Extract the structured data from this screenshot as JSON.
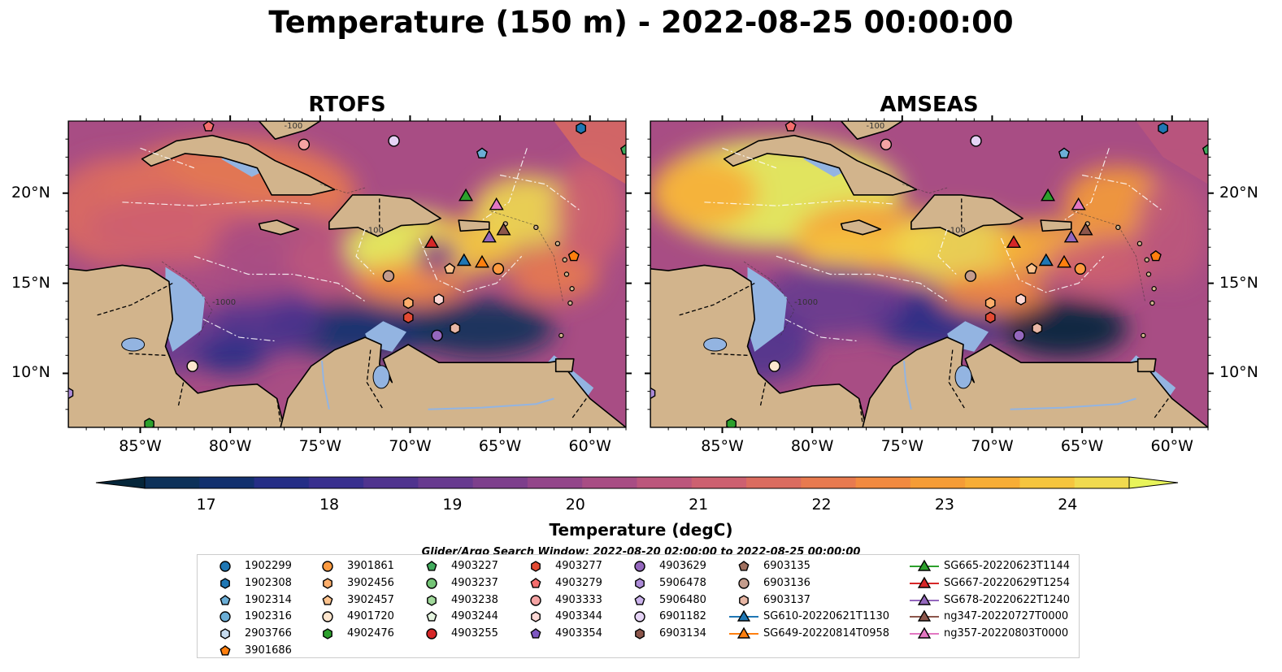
{
  "title": "Temperature (150 m) - 2022-08-25 00:00:00",
  "panels": [
    {
      "title": "RTOFS"
    },
    {
      "title": "AMSEAS"
    }
  ],
  "lon_ticks": [
    "85°W",
    "80°W",
    "75°W",
    "70°W",
    "65°W",
    "60°W"
  ],
  "lat_ticks": [
    "20°N",
    "15°N",
    "10°N"
  ],
  "map_extent": {
    "lon": [
      -89,
      -58
    ],
    "lat": [
      7,
      24
    ]
  },
  "colorbar": {
    "label": "Temperature (degC)",
    "range": [
      16.5,
      24.5
    ],
    "step": 0.5,
    "ticks": [
      "17",
      "18",
      "19",
      "20",
      "21",
      "22",
      "23",
      "24"
    ],
    "extend": "both",
    "colors": [
      "#05263a",
      "#0d3159",
      "#12306e",
      "#252e86",
      "#382f8e",
      "#4f338e",
      "#673a8f",
      "#7d3f8c",
      "#93468a",
      "#a84d84",
      "#bc567c",
      "#cd6070",
      "#db6c5f",
      "#e87a4f",
      "#f28a40",
      "#f59c36",
      "#f7ad36",
      "#f5c53e",
      "#f0da4f",
      "#e8f45b"
    ]
  },
  "map_colors": {
    "land": "#d2b48c",
    "shelf": "#93b4e1",
    "ocean_deep": "#05263a"
  },
  "contour_labels": [
    "-1000",
    "-100"
  ],
  "search_window": "Glider/Argo Search Window: 2022-08-20 02:00:00 to 2022-08-25 00:00:00",
  "legend": {
    "columns": [
      [
        {
          "label": "1902299",
          "shape": "circle",
          "color": "#1f77b4"
        },
        {
          "label": "1902308",
          "shape": "hexagon",
          "color": "#1f77b4"
        },
        {
          "label": "1902314",
          "shape": "pentagon",
          "color": "#6baed6"
        },
        {
          "label": "1902316",
          "shape": "circle",
          "color": "#6baed6"
        },
        {
          "label": "2903766",
          "shape": "hexagon",
          "color": "#c6dbef"
        },
        {
          "label": "3901686",
          "shape": "pentagon",
          "color": "#ff7f0e"
        }
      ],
      [
        {
          "label": "3901861",
          "shape": "circle",
          "color": "#fd9a40"
        },
        {
          "label": "3902456",
          "shape": "hexagon",
          "color": "#fdae6b"
        },
        {
          "label": "3902457",
          "shape": "pentagon",
          "color": "#fdc38e"
        },
        {
          "label": "4901720",
          "shape": "circle",
          "color": "#fee6ce"
        },
        {
          "label": "4902476",
          "shape": "hexagon",
          "color": "#2ca02c"
        }
      ],
      [
        {
          "label": "4903227",
          "shape": "pentagon",
          "color": "#41ab5d"
        },
        {
          "label": "4903237",
          "shape": "circle",
          "color": "#74c476"
        },
        {
          "label": "4903238",
          "shape": "hexagon",
          "color": "#a1d99b"
        },
        {
          "label": "4903244",
          "shape": "pentagon",
          "color": "#e5f5e0"
        },
        {
          "label": "4903255",
          "shape": "circle",
          "color": "#d62728"
        }
      ],
      [
        {
          "label": "4903277",
          "shape": "hexagon",
          "color": "#e34a33"
        },
        {
          "label": "4903279",
          "shape": "pentagon",
          "color": "#f46d6d"
        },
        {
          "label": "4903333",
          "shape": "circle",
          "color": "#f4a3a3"
        },
        {
          "label": "4903344",
          "shape": "hexagon",
          "color": "#fdd8d5"
        },
        {
          "label": "4903354",
          "shape": "pentagon",
          "color": "#7e57c2"
        }
      ],
      [
        {
          "label": "4903629",
          "shape": "circle",
          "color": "#9467bd"
        },
        {
          "label": "5906478",
          "shape": "hexagon",
          "color": "#ad8bd8"
        },
        {
          "label": "5906480",
          "shape": "pentagon",
          "color": "#cbb3ec"
        },
        {
          "label": "6901182",
          "shape": "circle",
          "color": "#e5d3f5"
        },
        {
          "label": "6903134",
          "shape": "hexagon",
          "color": "#8c564b"
        }
      ],
      [
        {
          "label": "6903135",
          "shape": "pentagon",
          "color": "#a0705f"
        },
        {
          "label": "6903136",
          "shape": "circle",
          "color": "#c49c8c"
        },
        {
          "label": "6903137",
          "shape": "hexagon",
          "color": "#e8b7a5"
        },
        {
          "label": "SG610-20220621T1130",
          "shape": "triangle",
          "color": "#1f77b4"
        },
        {
          "label": "SG649-20220814T0958",
          "shape": "triangle",
          "color": "#ff7f0e"
        }
      ],
      [
        {
          "label": "SG665-20220623T1144",
          "shape": "triangle",
          "color": "#2ca02c"
        },
        {
          "label": "SG667-20220629T1254",
          "shape": "triangle",
          "color": "#d62728"
        },
        {
          "label": "SG678-20220622T1240",
          "shape": "triangle",
          "color": "#9467bd"
        },
        {
          "label": "ng347-20220727T0000",
          "shape": "triangle",
          "color": "#8c564b"
        },
        {
          "label": "ng357-20220803T0000",
          "shape": "triangle",
          "color": "#e377c2"
        }
      ]
    ]
  },
  "markers": [
    {
      "label": "3901686",
      "lon": -60.9,
      "lat": 16.5,
      "shape": "pentagon",
      "color": "#ff7f0e"
    },
    {
      "label": "3901861",
      "lon": -65.1,
      "lat": 15.8,
      "shape": "circle",
      "color": "#fd9a40"
    },
    {
      "label": "3902456",
      "lon": -70.1,
      "lat": 13.9,
      "shape": "hexagon",
      "color": "#fdae6b"
    },
    {
      "label": "3902457",
      "lon": -67.8,
      "lat": 15.8,
      "shape": "pentagon",
      "color": "#fdc38e"
    },
    {
      "label": "4901720",
      "lon": -82.1,
      "lat": 10.4,
      "shape": "circle",
      "color": "#fee6ce"
    },
    {
      "label": "4902476",
      "lon": -84.5,
      "lat": 7.2,
      "shape": "hexagon",
      "color": "#2ca02c"
    },
    {
      "label": "4903277",
      "lon": -70.1,
      "lat": 13.1,
      "shape": "hexagon",
      "color": "#e34a33"
    },
    {
      "label": "4903279",
      "lon": -81.2,
      "lat": 23.7,
      "shape": "pentagon",
      "color": "#f46d6d"
    },
    {
      "label": "4903333",
      "lon": -75.9,
      "lat": 22.7,
      "shape": "circle",
      "color": "#f4a3a3"
    },
    {
      "label": "4903344",
      "lon": -68.4,
      "lat": 14.1,
      "shape": "hexagon",
      "color": "#fdd8d5"
    },
    {
      "label": "4903629",
      "lon": -68.5,
      "lat": 12.1,
      "shape": "circle",
      "color": "#9467bd"
    },
    {
      "label": "5906478",
      "lon": -89.0,
      "lat": 8.9,
      "shape": "hexagon",
      "color": "#ad8bd8"
    },
    {
      "label": "6901182",
      "lon": -70.9,
      "lat": 22.9,
      "shape": "circle",
      "color": "#e5d3f5"
    },
    {
      "label": "6903136",
      "lon": -71.2,
      "lat": 15.4,
      "shape": "circle",
      "color": "#c49c8c"
    },
    {
      "label": "6903137",
      "lon": -67.5,
      "lat": 12.5,
      "shape": "hexagon",
      "color": "#e8b7a5"
    },
    {
      "label": "1902308",
      "lon": -60.5,
      "lat": 23.6,
      "shape": "hexagon",
      "color": "#1f77b4"
    },
    {
      "label": "1902314",
      "lon": -66.0,
      "lat": 22.2,
      "shape": "pentagon",
      "color": "#6baed6"
    },
    {
      "label": "4903227",
      "lon": -58.0,
      "lat": 22.4,
      "shape": "pentagon",
      "color": "#41ab5d"
    },
    {
      "label": "SG610-20220621T1130",
      "lon": -67.0,
      "lat": 16.3,
      "shape": "triangle",
      "color": "#1f77b4"
    },
    {
      "label": "SG649-20220814T0958",
      "lon": -66.0,
      "lat": 16.2,
      "shape": "triangle",
      "color": "#ff7f0e"
    },
    {
      "label": "SG665-20220623T1144",
      "lon": -66.9,
      "lat": 19.9,
      "shape": "triangle",
      "color": "#2ca02c"
    },
    {
      "label": "SG667-20220629T1254",
      "lon": -68.8,
      "lat": 17.3,
      "shape": "triangle",
      "color": "#d62728"
    },
    {
      "label": "SG678-20220622T1240",
      "lon": -65.6,
      "lat": 17.6,
      "shape": "triangle",
      "color": "#9467bd"
    },
    {
      "label": "ng347-20220727T0000",
      "lon": -64.8,
      "lat": 18.0,
      "shape": "triangle",
      "color": "#8c564b"
    },
    {
      "label": "ng357-20220803T0000",
      "lon": -65.2,
      "lat": 19.4,
      "shape": "triangle",
      "color": "#e377c2"
    }
  ]
}
